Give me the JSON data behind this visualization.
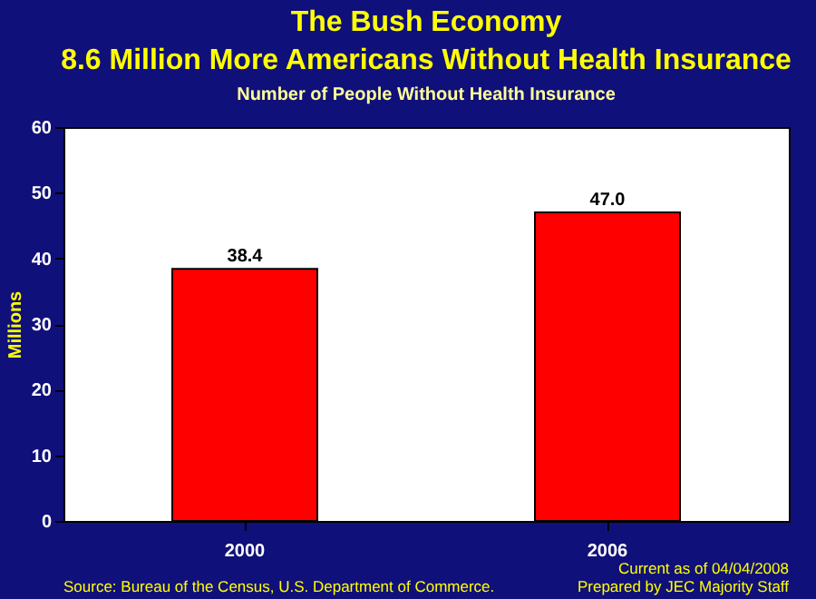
{
  "chart_data": {
    "type": "bar",
    "title": "The Bush Economy\n8.6 Million More Americans Without Health Insurance",
    "subtitle": "Number of People Without Health Insurance",
    "ylabel": "Millions",
    "categories": [
      "2000",
      "2006"
    ],
    "values": [
      38.4,
      47.0
    ],
    "value_labels": [
      "38.4",
      "47.0"
    ],
    "color": "#ff0000",
    "ylim": [
      0,
      60
    ],
    "yticks": [
      0,
      10,
      20,
      30,
      40,
      50,
      60
    ],
    "grid": false,
    "annotations": [
      "Source: Bureau of the Census, U.S. Department of Commerce.",
      "Current as of 04/04/2008",
      "Prepared by JEC Majority Staff"
    ]
  }
}
